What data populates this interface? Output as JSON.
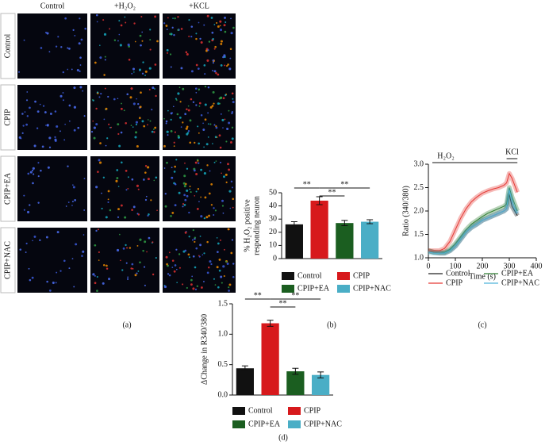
{
  "image_grid": {
    "columns": [
      "Control",
      "+H₂O₂",
      "+KCL"
    ],
    "rows": [
      "Control",
      "CPIP",
      "CPIP+EA",
      "CPIP+NAC"
    ]
  },
  "panel_labels": [
    "(a)",
    "(b)",
    "(c)",
    "(d)"
  ],
  "chart_data": [
    {
      "type": "bar",
      "ylabel": [
        "% H₂O₂ positive",
        "responding neuron"
      ],
      "categories": [
        "Control",
        "CPIP",
        "CPIP+EA",
        "CPIP+NAC"
      ],
      "colors": [
        "#111111",
        "#d7191c",
        "#1b5e20",
        "#4aaec6"
      ],
      "values": [
        26,
        44,
        27,
        28
      ],
      "errors": [
        2,
        3,
        2,
        1.5
      ],
      "ylim": [
        0,
        50
      ],
      "yticks": [
        0,
        10,
        20,
        30,
        40,
        50
      ],
      "significance": [
        {
          "pair": [
            "Control",
            "CPIP"
          ],
          "label": "**"
        },
        {
          "pair": [
            "CPIP",
            "CPIP+EA"
          ],
          "label": "**"
        },
        {
          "pair": [
            "CPIP",
            "CPIP+NAC"
          ],
          "label": "**"
        }
      ]
    },
    {
      "type": "line",
      "xlabel": "Time (s)",
      "ylabel": "Ratio (340/380)",
      "annotations": [
        "H₂O₂",
        "KCl"
      ],
      "x": [
        0,
        20,
        40,
        60,
        80,
        100,
        120,
        140,
        160,
        180,
        200,
        220,
        240,
        260,
        280,
        290,
        300,
        310,
        320,
        330
      ],
      "series": [
        {
          "name": "Control",
          "color": "#222222",
          "values": [
            1.15,
            1.12,
            1.1,
            1.1,
            1.15,
            1.25,
            1.4,
            1.55,
            1.65,
            1.72,
            1.8,
            1.85,
            1.9,
            1.95,
            2.0,
            2.05,
            2.35,
            2.1,
            2.0,
            1.9
          ]
        },
        {
          "name": "CPIP+EA",
          "color": "#2e7d32",
          "values": [
            1.15,
            1.12,
            1.12,
            1.12,
            1.18,
            1.3,
            1.45,
            1.6,
            1.72,
            1.8,
            1.88,
            1.95,
            2.0,
            2.05,
            2.1,
            2.15,
            2.5,
            2.3,
            2.15,
            2.0
          ]
        },
        {
          "name": "CPIP",
          "color": "#e53935",
          "values": [
            1.15,
            1.15,
            1.15,
            1.2,
            1.35,
            1.6,
            1.85,
            2.05,
            2.2,
            2.3,
            2.38,
            2.43,
            2.47,
            2.5,
            2.55,
            2.6,
            2.8,
            2.7,
            2.55,
            2.4
          ]
        },
        {
          "name": "CPIP+NAC",
          "color": "#4fb3d9",
          "values": [
            1.12,
            1.1,
            1.1,
            1.1,
            1.15,
            1.25,
            1.4,
            1.55,
            1.65,
            1.72,
            1.8,
            1.85,
            1.9,
            1.95,
            2.0,
            2.05,
            2.45,
            2.2,
            2.05,
            1.95
          ]
        }
      ],
      "xlim": [
        0,
        400
      ],
      "xticks": [
        0,
        100,
        200,
        300,
        400
      ],
      "ylim": [
        1.0,
        3.0
      ],
      "yticks": [
        {
          "value": 1.0,
          "label": "1.0"
        },
        {
          "value": 1.5,
          "label": "1.5"
        },
        {
          "value": 2.0,
          "label": "2.0"
        },
        {
          "value": 2.5,
          "label": "2.5"
        },
        {
          "value": 3.0,
          "label": "3.0"
        }
      ]
    },
    {
      "type": "bar",
      "ylabel": [
        "ΔChange in R340/380"
      ],
      "categories": [
        "Control",
        "CPIP",
        "CPIP+EA",
        "CPIP+NAC"
      ],
      "colors": [
        "#111111",
        "#d7191c",
        "#1b5e20",
        "#4aaec6"
      ],
      "values": [
        0.44,
        1.18,
        0.39,
        0.33
      ],
      "errors": [
        0.04,
        0.05,
        0.05,
        0.05
      ],
      "ylim": [
        0,
        1.5
      ],
      "yticks": [
        {
          "value": 0,
          "label": "0.0"
        },
        {
          "value": 0.5,
          "label": "0.5"
        },
        {
          "value": 1.0,
          "label": "1.0"
        },
        {
          "value": 1.5,
          "label": "1.5"
        }
      ],
      "significance": [
        {
          "pair": [
            "Control",
            "CPIP"
          ],
          "label": "**"
        },
        {
          "pair": [
            "CPIP",
            "CPIP+EA"
          ],
          "label": "**"
        },
        {
          "pair": [
            "CPIP",
            "CPIP+NAC"
          ],
          "label": "**"
        }
      ]
    }
  ]
}
